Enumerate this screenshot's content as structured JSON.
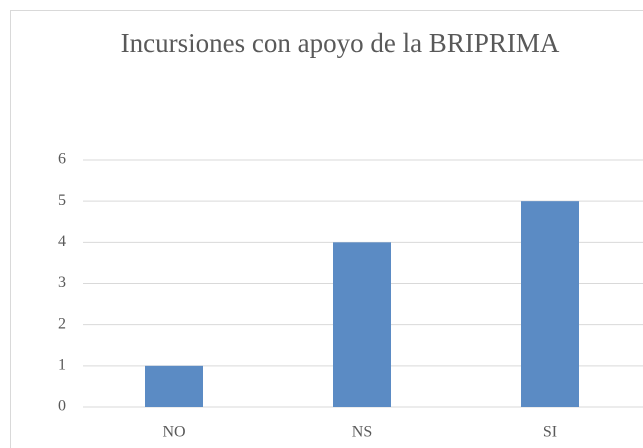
{
  "chart_data": {
    "type": "bar",
    "title": "Incursiones con apoyo de la BRIPRIMA",
    "categories": [
      "NO",
      "NS",
      "SI"
    ],
    "values": [
      1,
      4,
      5
    ],
    "color": "#5b8bc4",
    "ylim": [
      0,
      6
    ],
    "yticks": [
      0,
      1,
      2,
      3,
      4,
      5,
      6
    ],
    "grid": true
  }
}
